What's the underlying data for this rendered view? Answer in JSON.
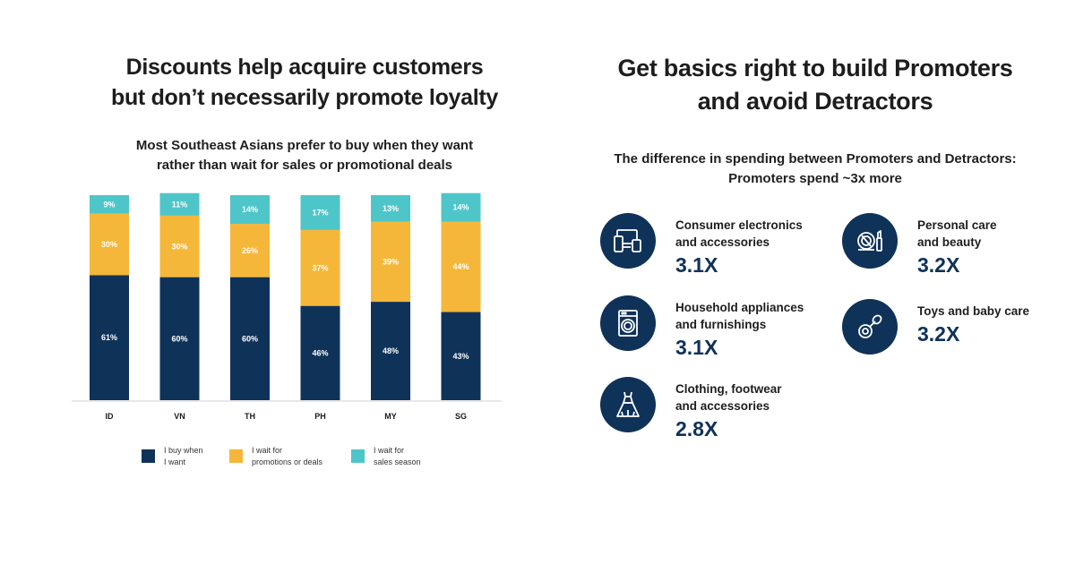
{
  "left_panel": {
    "title_line1": "Discounts help acquire customers",
    "title_line2": "but don’t necessarily promote loyalty",
    "subtitle_line1": "Most Southeast Asians prefer to buy when they want",
    "subtitle_line2": "rather than wait for sales or promotional deals"
  },
  "chart_data": {
    "type": "bar",
    "stacked": true,
    "categories": [
      "ID",
      "VN",
      "TH",
      "PH",
      "MY",
      "SG"
    ],
    "series": [
      {
        "name": "I buy when I want",
        "values": [
          61,
          60,
          60,
          46,
          48,
          43
        ],
        "color": "#0f3259"
      },
      {
        "name": "I wait for promotions or deals",
        "values": [
          30,
          30,
          26,
          37,
          39,
          44
        ],
        "color": "#f4b73a"
      },
      {
        "name": "I wait for sales season",
        "values": [
          9,
          11,
          14,
          17,
          13,
          14
        ],
        "color": "#4ec6c9"
      }
    ],
    "value_suffix": "%",
    "ylim": [
      0,
      100
    ],
    "grid": false,
    "legend_position": "bottom",
    "legend": [
      {
        "line1": "I buy when",
        "line2": "I want",
        "color": "#0f3259"
      },
      {
        "line1": "I wait for",
        "line2": "promotions or deals",
        "color": "#f4b73a"
      },
      {
        "line1": "I wait for",
        "line2": "sales season",
        "color": "#4ec6c9"
      }
    ]
  },
  "right_panel": {
    "title_line1": "Get basics right to build Promoters",
    "title_line2": "and avoid Detractors",
    "subtitle_line1": "The difference in spending between Promoters and Detractors:",
    "subtitle_line2": "Promoters spend ~3x more",
    "categories": [
      {
        "icon": "devices-icon",
        "label_line1": "Consumer electronics",
        "label_line2": "and accessories",
        "value": "3.1X"
      },
      {
        "icon": "cosmetics-icon",
        "label_line1": "Personal care",
        "label_line2": "and beauty",
        "value": "3.2X"
      },
      {
        "icon": "washing-machine-icon",
        "label_line1": "Household appliances",
        "label_line2": "and furnishings",
        "value": "3.1X"
      },
      {
        "icon": "pacifier-icon",
        "label_line1": "Toys and baby care",
        "label_line2": "",
        "value": "3.2X"
      },
      {
        "icon": "dress-icon",
        "label_line1": "Clothing, footwear",
        "label_line2": "and accessories",
        "value": "2.8X"
      }
    ],
    "icon_bg": "#0f3259"
  }
}
